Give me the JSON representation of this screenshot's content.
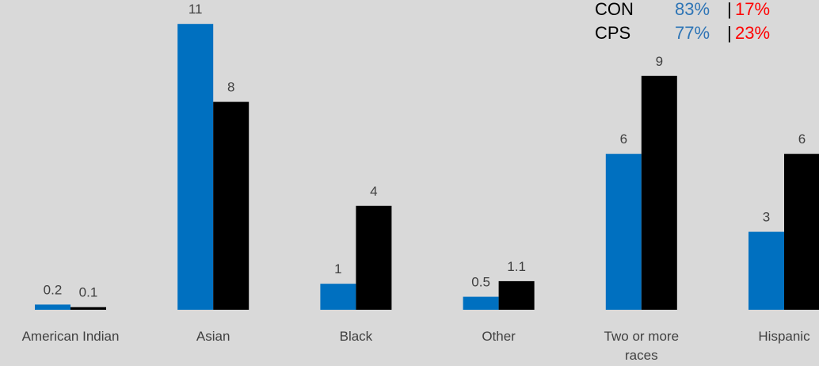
{
  "colors": {
    "background": "#d9d9d9",
    "series_a": "#0070c0",
    "series_b": "#000000",
    "legend_a": "#2e75b6",
    "legend_b": "#ff0000"
  },
  "legend_rows": [
    {
      "name": "CON",
      "a": "83%",
      "sep": "|",
      "b": "17%"
    },
    {
      "name": "CPS",
      "a": "77%",
      "sep": "|",
      "b": "23%"
    }
  ],
  "chart_data": {
    "type": "bar",
    "categories": [
      "American Indian",
      "Asian",
      "Black",
      "Other",
      "Two or more races",
      "Hispanic"
    ],
    "category_lines": [
      [
        "American Indian"
      ],
      [
        "Asian"
      ],
      [
        "Black"
      ],
      [
        "Other"
      ],
      [
        "Two or more",
        "races"
      ],
      [
        "Hispanic"
      ]
    ],
    "series": [
      {
        "values": [
          0.2,
          11,
          1,
          0.5,
          6,
          3
        ],
        "labels": [
          "0.2",
          "11",
          "1",
          "0.5",
          "6",
          "3"
        ]
      },
      {
        "values": [
          0.1,
          8,
          4,
          1.1,
          9,
          6
        ],
        "labels": [
          "0.1",
          "8",
          "4",
          "1.1",
          "9",
          "6"
        ]
      }
    ],
    "ylim": [
      0,
      11
    ],
    "grid": false
  }
}
